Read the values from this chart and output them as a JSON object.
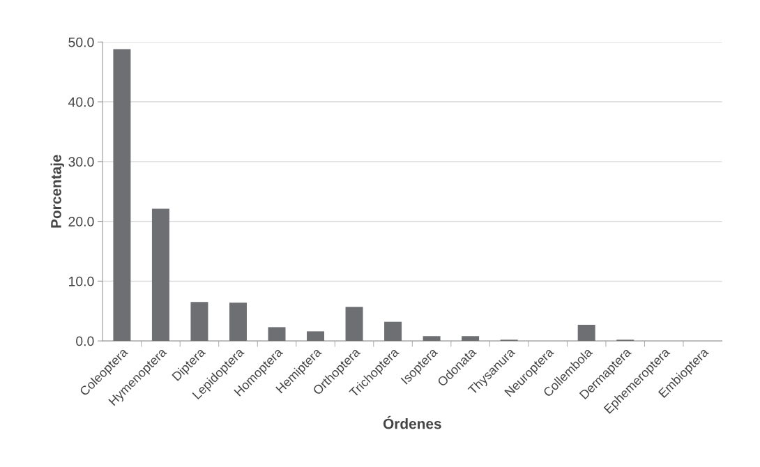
{
  "chart_data": {
    "type": "bar",
    "xlabel": "Órdenes",
    "ylabel": "Porcentaje",
    "categories": [
      "Coleoptera",
      "Hymenoptera",
      "Diptera",
      "Lepidoptera",
      "Homoptera",
      "Hemiptera",
      "Orthoptera",
      "Trichoptera",
      "Isoptera",
      "Odonata",
      "Thysanura",
      "Neuroptera",
      "Collembola",
      "Dermaptera",
      "Ephemeroptera",
      "Embioptera"
    ],
    "values": [
      48.8,
      22.1,
      6.5,
      6.4,
      2.3,
      1.6,
      5.7,
      3.2,
      0.8,
      0.8,
      0.2,
      0.0,
      2.7,
      0.2,
      0.0,
      0.0
    ],
    "color": "#6d6f73",
    "ylim": [
      0,
      50
    ],
    "yticks": [
      {
        "value": 0,
        "label": "0.0"
      },
      {
        "value": 10,
        "label": "10.0"
      },
      {
        "value": 20,
        "label": "20.0"
      },
      {
        "value": 30,
        "label": "30.0"
      },
      {
        "value": 40,
        "label": "40.0"
      },
      {
        "value": 50,
        "label": "50.0"
      }
    ],
    "grid": "y"
  }
}
